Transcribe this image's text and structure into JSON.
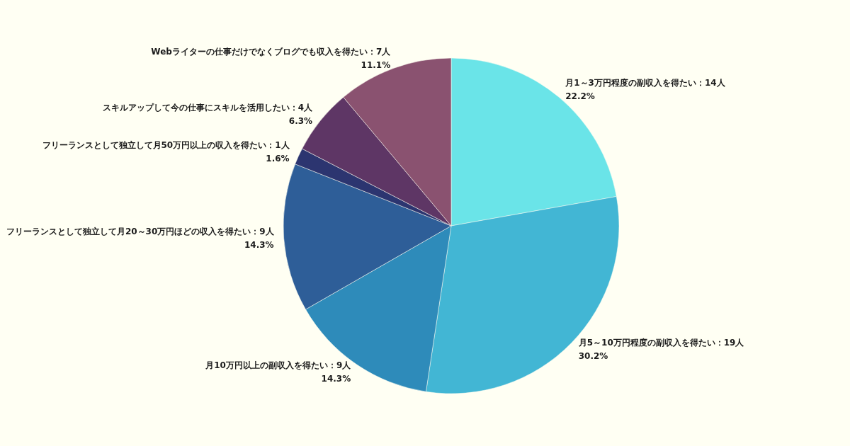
{
  "chart_data": {
    "type": "pie",
    "categories": [
      "月1～3万円程度の副収入を得たい：14人",
      "月5～10万円程度の副収入を得たい：19人",
      "月10万円以上の副収入を得たい：9人",
      "フリーランスとして独立して月20～30万円ほどの収入を得たい：9人",
      "フリーランスとして独立して月50万円以上の収入を得たい：1人",
      "スキルアップして今の仕事にスキルを活用したい：4人",
      "Webライターの仕事だけでなくブログでも収入を得たい：7人"
    ],
    "values": [
      22.2,
      30.2,
      14.3,
      14.3,
      1.6,
      6.3,
      11.1
    ],
    "value_labels": [
      "22.2%",
      "30.2%",
      "14.3%",
      "14.3%",
      "1.6%",
      "6.3%",
      "11.1%"
    ],
    "colors": [
      "#6ae4e8",
      "#42b6d4",
      "#2e8bba",
      "#2e5e98",
      "#2c3570",
      "#5e3665",
      "#8a5270"
    ]
  }
}
